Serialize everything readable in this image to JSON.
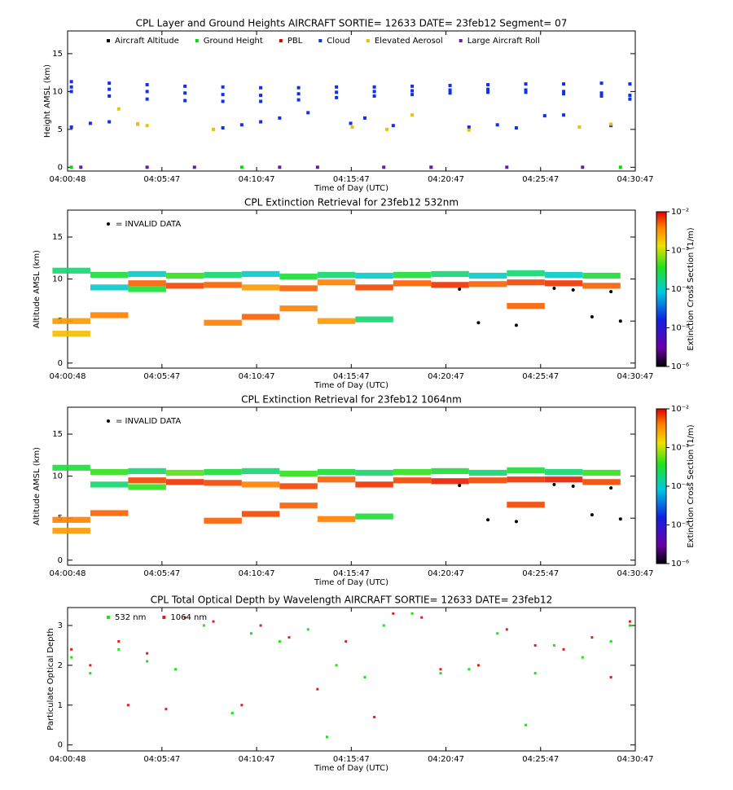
{
  "chart_data": [
    {
      "type": "scatter",
      "title": "CPL Layer and Ground Heights AIRCRAFT SORTIE= 12633 DATE= 23feb12 Segment= 07",
      "x_label": "Time of Day (UTC)",
      "y_label": "Height AMSL (km)",
      "xlim": [
        "04:00:48",
        "04:30:47"
      ],
      "xticks": [
        "04:00:48",
        "04:05:47",
        "04:10:47",
        "04:15:47",
        "04:20:47",
        "04:25:47",
        "04:30:47"
      ],
      "ylim": [
        -0.5,
        18
      ],
      "yticks": [
        0,
        5,
        10,
        15
      ],
      "series": [
        {
          "name": "Aircraft Altitude",
          "color": "#000000",
          "x": [],
          "values": []
        },
        {
          "name": "Ground Height",
          "color": "#00e000",
          "x": [
            "04:01:00",
            "04:10:00",
            "04:20:00",
            "04:30:00"
          ],
          "values": [
            0,
            0,
            0,
            0
          ]
        },
        {
          "name": "PBL",
          "color": "#e00000",
          "x": [],
          "values": []
        },
        {
          "name": "Cloud",
          "color": "#1030f0",
          "x": [
            "04:01:00",
            "04:03:00",
            "04:05:00",
            "04:07:00",
            "04:09:00",
            "04:11:00",
            "04:13:00",
            "04:15:00",
            "04:17:00",
            "04:19:00",
            "04:21:00",
            "04:23:00",
            "04:25:00",
            "04:27:00",
            "04:29:00",
            "04:30:30",
            "04:01:00",
            "04:03:00",
            "04:05:00",
            "04:07:00",
            "04:09:00",
            "04:11:00",
            "04:13:00",
            "04:15:00",
            "04:17:00",
            "04:19:00",
            "04:21:00",
            "04:23:00",
            "04:25:00",
            "04:27:00",
            "04:29:00",
            "04:30:30",
            "04:01:00",
            "04:03:00",
            "04:05:00",
            "04:07:00",
            "04:09:00",
            "04:11:00",
            "04:13:00",
            "04:15:00",
            "04:17:00",
            "04:19:00",
            "04:21:00",
            "04:23:00",
            "04:25:00",
            "04:27:00",
            "04:29:00",
            "04:30:30",
            "04:01:00",
            "04:02:00",
            "04:03:00",
            "04:04:30",
            "04:09:00",
            "04:10:00",
            "04:11:00",
            "04:12:00",
            "04:13:30",
            "04:15:45",
            "04:16:30",
            "04:18:00",
            "04:22:00",
            "04:23:30",
            "04:24:30",
            "04:26:00",
            "04:27:00",
            "04:29:30"
          ],
          "values": [
            11.3,
            11.1,
            10.9,
            10.7,
            10.6,
            10.5,
            10.5,
            10.6,
            10.6,
            10.7,
            10.8,
            10.9,
            11.0,
            11.0,
            11.1,
            11.0,
            10.6,
            10.3,
            10.0,
            9.8,
            9.6,
            9.5,
            9.7,
            9.9,
            10.0,
            10.1,
            10.2,
            10.3,
            10.2,
            10.0,
            9.8,
            9.5,
            10.0,
            9.4,
            9.0,
            8.8,
            8.7,
            8.7,
            8.9,
            9.2,
            9.4,
            9.6,
            9.8,
            9.9,
            9.9,
            9.7,
            9.4,
            9.0,
            5.3,
            5.8,
            6.0,
            5.7,
            5.2,
            5.6,
            6.0,
            6.5,
            7.2,
            5.8,
            6.5,
            5.5,
            5.3,
            5.6,
            5.2,
            6.8,
            6.9,
            5.5
          ]
        },
        {
          "name": "Elevated Aerosol",
          "color": "#f0c000",
          "x": [
            "04:03:30",
            "04:04:30",
            "04:05:00",
            "04:08:30",
            "04:15:50",
            "04:17:40",
            "04:19:00",
            "04:22:00",
            "04:27:50",
            "04:29:30"
          ],
          "values": [
            7.7,
            5.7,
            5.5,
            5.0,
            5.3,
            5.0,
            6.9,
            4.9,
            5.3,
            5.7
          ]
        },
        {
          "name": "Large Aircraft Roll",
          "color": "#6020a0",
          "x": [
            "04:01:30",
            "04:05:00",
            "04:07:30",
            "04:12:00",
            "04:14:00",
            "04:17:30",
            "04:20:00",
            "04:24:00",
            "04:28:00"
          ],
          "values": [
            0,
            0,
            0,
            0,
            0,
            0,
            0,
            0,
            0
          ]
        }
      ]
    },
    {
      "type": "curtain",
      "title": "CPL Extinction Retrieval for 23feb12      532nm",
      "x_label": "Time of Day (UTC)",
      "y_label": "Altitude AMSL (km)",
      "invalid_label": "= INVALID DATA",
      "colorbar_label": "Extinction Cross Section (1/m)",
      "xlim": [
        "04:00:48",
        "04:30:47"
      ],
      "xticks": [
        "04:00:48",
        "04:05:47",
        "04:10:47",
        "04:15:47",
        "04:20:47",
        "04:25:47",
        "04:30:47"
      ],
      "ylim": [
        -0.6,
        18.2
      ],
      "yticks": [
        0,
        5,
        10,
        15
      ],
      "zlim": [
        1e-06,
        0.01
      ],
      "log_z": true,
      "zticks": [
        {
          "value": 0.01,
          "label": "10⁻²"
        },
        {
          "value": 0.001,
          "label": "10⁻³"
        },
        {
          "value": 0.0001,
          "label": "10⁻⁴"
        },
        {
          "value": 1e-05,
          "label": "10⁻⁵"
        },
        {
          "value": 1e-06,
          "label": "10⁻⁶"
        }
      ],
      "cells": {
        "x": [
          "04:01:00",
          "04:01:00",
          "04:01:00",
          "04:03:00",
          "04:03:00",
          "04:03:00",
          "04:05:00",
          "04:05:00",
          "04:05:00",
          "04:07:00",
          "04:07:00",
          "04:09:00",
          "04:09:00",
          "04:09:00",
          "04:11:00",
          "04:11:00",
          "04:11:00",
          "04:13:00",
          "04:13:00",
          "04:13:00",
          "04:15:00",
          "04:15:00",
          "04:15:00",
          "04:17:00",
          "04:17:00",
          "04:17:00",
          "04:19:00",
          "04:19:00",
          "04:21:00",
          "04:21:00",
          "04:23:00",
          "04:23:00",
          "04:25:00",
          "04:25:00",
          "04:25:00",
          "04:27:00",
          "04:27:00",
          "04:29:00",
          "04:29:00"
        ],
        "y": [
          11.0,
          5.0,
          3.5,
          10.5,
          9.0,
          5.7,
          10.6,
          9.5,
          8.8,
          10.4,
          9.2,
          10.5,
          9.3,
          4.8,
          10.6,
          9.0,
          5.5,
          10.3,
          8.9,
          6.5,
          10.5,
          9.6,
          5.0,
          10.4,
          9.0,
          5.2,
          10.5,
          9.5,
          10.6,
          9.3,
          10.4,
          9.4,
          10.7,
          9.6,
          6.8,
          10.5,
          9.5,
          10.4,
          9.2
        ],
        "values": [
          0.0002,
          0.003,
          0.002,
          0.0003,
          0.0001,
          0.004,
          0.0001,
          0.005,
          0.0003,
          0.0004,
          0.006,
          0.0002,
          0.005,
          0.004,
          0.0001,
          0.003,
          0.005,
          0.0003,
          0.005,
          0.004,
          0.0002,
          0.004,
          0.003,
          0.0001,
          0.006,
          0.0002,
          0.0003,
          0.005,
          0.0002,
          0.007,
          0.0001,
          0.005,
          0.0002,
          0.006,
          0.005,
          0.0001,
          0.007,
          0.0003,
          0.005
        ]
      },
      "invalid": {
        "x": [
          "04:21:30",
          "04:22:30",
          "04:24:30",
          "04:26:30",
          "04:27:30",
          "04:28:30",
          "04:29:30",
          "04:30:00"
        ],
        "values": [
          8.8,
          4.8,
          4.5,
          8.9,
          8.7,
          5.5,
          8.5,
          5.0
        ]
      }
    },
    {
      "type": "curtain",
      "title": "CPL Extinction Retrieval for 23feb12     1064nm",
      "x_label": "Time of Day (UTC)",
      "y_label": "Altitude AMSL (km)",
      "invalid_label": "= INVALID DATA",
      "colorbar_label": "Extinction Cross Section (1/m)",
      "xlim": [
        "04:00:48",
        "04:30:47"
      ],
      "xticks": [
        "04:00:48",
        "04:05:47",
        "04:10:47",
        "04:15:47",
        "04:20:47",
        "04:25:47",
        "04:30:47"
      ],
      "ylim": [
        -0.6,
        18.2
      ],
      "yticks": [
        0,
        5,
        10,
        15
      ],
      "zlim": [
        1e-06,
        0.01
      ],
      "log_z": true,
      "zticks": [
        {
          "value": 0.01,
          "label": "10⁻²"
        },
        {
          "value": 0.001,
          "label": "10⁻³"
        },
        {
          "value": 0.0001,
          "label": "10⁻⁴"
        },
        {
          "value": 1e-05,
          "label": "10⁻⁵"
        },
        {
          "value": 1e-06,
          "label": "10⁻⁶"
        }
      ],
      "cells": {
        "x": [
          "04:01:00",
          "04:01:00",
          "04:01:00",
          "04:03:00",
          "04:03:00",
          "04:03:00",
          "04:05:00",
          "04:05:00",
          "04:05:00",
          "04:07:00",
          "04:07:00",
          "04:09:00",
          "04:09:00",
          "04:09:00",
          "04:11:00",
          "04:11:00",
          "04:11:00",
          "04:13:00",
          "04:13:00",
          "04:13:00",
          "04:15:00",
          "04:15:00",
          "04:15:00",
          "04:17:00",
          "04:17:00",
          "04:17:00",
          "04:19:00",
          "04:19:00",
          "04:21:00",
          "04:21:00",
          "04:23:00",
          "04:23:00",
          "04:25:00",
          "04:25:00",
          "04:25:00",
          "04:27:00",
          "04:27:00",
          "04:29:00",
          "04:29:00"
        ],
        "y": [
          11.0,
          4.8,
          3.5,
          10.5,
          9.0,
          5.6,
          10.6,
          9.5,
          8.7,
          10.4,
          9.3,
          10.5,
          9.2,
          4.7,
          10.6,
          9.0,
          5.5,
          10.3,
          8.8,
          6.5,
          10.5,
          9.6,
          4.9,
          10.4,
          9.0,
          5.2,
          10.5,
          9.5,
          10.6,
          9.4,
          10.4,
          9.5,
          10.7,
          9.6,
          6.6,
          10.5,
          9.6,
          10.4,
          9.3
        ],
        "values": [
          0.0003,
          0.004,
          0.003,
          0.0004,
          0.0002,
          0.005,
          0.0002,
          0.006,
          0.0004,
          0.0005,
          0.007,
          0.0003,
          0.006,
          0.005,
          0.0002,
          0.004,
          0.006,
          0.0004,
          0.006,
          0.005,
          0.0003,
          0.005,
          0.004,
          0.0002,
          0.007,
          0.0003,
          0.0004,
          0.006,
          0.0003,
          0.008,
          0.0002,
          0.006,
          0.0003,
          0.007,
          0.006,
          0.0002,
          0.008,
          0.0004,
          0.006
        ]
      },
      "invalid": {
        "x": [
          "04:21:30",
          "04:23:00",
          "04:24:30",
          "04:26:30",
          "04:27:30",
          "04:28:30",
          "04:29:30",
          "04:30:00"
        ],
        "values": [
          8.9,
          4.8,
          4.6,
          9.0,
          8.8,
          5.4,
          8.6,
          4.9
        ]
      }
    },
    {
      "type": "scatter",
      "title": "CPL Total Optical Depth by Wavelength AIRCRAFT SORTIE= 12633 DATE= 23feb12",
      "x_label": "Time of Day (UTC)",
      "y_label": "Particulate Optical Depth",
      "xlim": [
        "04:00:48",
        "04:30:47"
      ],
      "xticks": [
        "04:00:48",
        "04:05:47",
        "04:10:47",
        "04:15:47",
        "04:20:47",
        "04:25:47",
        "04:30:47"
      ],
      "ylim": [
        -0.15,
        3.45
      ],
      "yticks": [
        0,
        1,
        2,
        3
      ],
      "series": [
        {
          "name": "532 nm",
          "color": "#20e020",
          "x": [
            "04:01:00",
            "04:02:00",
            "04:03:30",
            "04:05:00",
            "04:06:30",
            "04:08:00",
            "04:09:30",
            "04:10:30",
            "04:12:00",
            "04:13:30",
            "04:14:30",
            "04:15:00",
            "04:16:30",
            "04:17:30",
            "04:19:00",
            "04:20:30",
            "04:22:00",
            "04:23:30",
            "04:25:00",
            "04:25:30",
            "04:26:30",
            "04:28:00",
            "04:29:30",
            "04:30:30"
          ],
          "values": [
            2.2,
            1.8,
            2.4,
            2.1,
            1.9,
            3.0,
            0.8,
            2.8,
            2.6,
            2.9,
            0.2,
            2.0,
            1.7,
            3.0,
            3.3,
            1.8,
            1.9,
            2.8,
            0.5,
            1.8,
            2.5,
            2.2,
            2.6,
            3.0
          ]
        },
        {
          "name": "1064 nm",
          "color": "#e02020",
          "x": [
            "04:01:00",
            "04:02:00",
            "04:03:30",
            "04:04:00",
            "04:05:00",
            "04:06:00",
            "04:07:00",
            "04:08:30",
            "04:10:00",
            "04:11:00",
            "04:12:30",
            "04:14:00",
            "04:15:30",
            "04:17:00",
            "04:18:00",
            "04:19:30",
            "04:20:30",
            "04:22:30",
            "04:24:00",
            "04:25:30",
            "04:27:00",
            "04:28:30",
            "04:29:30",
            "04:30:30"
          ],
          "values": [
            2.4,
            2.0,
            2.6,
            1.0,
            2.3,
            0.9,
            3.2,
            3.1,
            1.0,
            3.0,
            2.7,
            1.4,
            2.6,
            0.7,
            3.3,
            3.2,
            1.9,
            2.0,
            2.9,
            2.5,
            2.4,
            2.7,
            1.7,
            3.1
          ]
        }
      ]
    }
  ]
}
